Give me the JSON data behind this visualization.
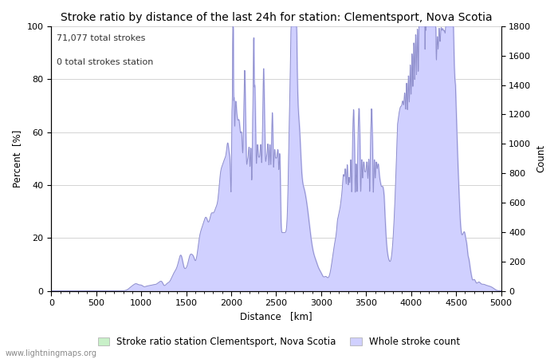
{
  "title": "Stroke ratio by distance of the last 24h for station: Clementsport, Nova Scotia",
  "xlabel": "Distance   [km]",
  "ylabel_left": "Percent  [%]",
  "ylabel_right": "Count",
  "annotation_line1": "71,077 total strokes",
  "annotation_line2": "0 total strokes station",
  "xlim": [
    0,
    5000
  ],
  "ylim_left": [
    0,
    100
  ],
  "ylim_right": [
    0,
    1800
  ],
  "xticks": [
    0,
    500,
    1000,
    1500,
    2000,
    2500,
    3000,
    3500,
    4000,
    4500,
    5000
  ],
  "yticks_left": [
    0,
    20,
    40,
    60,
    80,
    100
  ],
  "yticks_right": [
    0,
    200,
    400,
    600,
    800,
    1000,
    1200,
    1400,
    1600,
    1800
  ],
  "fill_color_stroke": "#c8f0c8",
  "fill_color_count": "#d0d0ff",
  "line_color": "#9090cc",
  "bg_color": "#ffffff",
  "grid_color": "#cccccc",
  "legend_label_green": "Stroke ratio station Clementsport, Nova Scotia",
  "legend_label_blue": "Whole stroke count",
  "watermark": "www.lightningmaps.org",
  "title_fontsize": 10,
  "label_fontsize": 8.5,
  "tick_fontsize": 8,
  "annotation_fontsize": 8
}
